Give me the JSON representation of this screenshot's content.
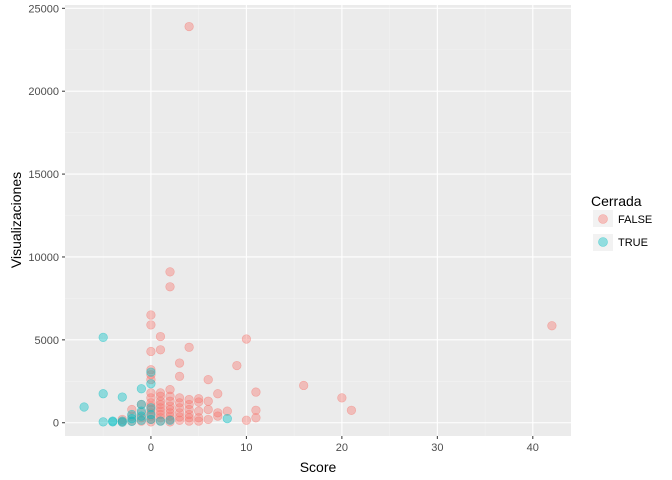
{
  "chart_data": {
    "type": "scatter",
    "xlabel": "Score",
    "ylabel": "Visualizaciones",
    "xlim": [
      -9,
      44
    ],
    "ylim": [
      -800,
      25200
    ],
    "xticks": [
      0,
      10,
      20,
      30,
      40
    ],
    "yticks": [
      0,
      5000,
      10000,
      15000,
      20000,
      25000
    ],
    "grid": true,
    "legend": {
      "title": "Cerrada",
      "position": "right",
      "entries": [
        {
          "label": "FALSE",
          "color": "#F8766D"
        },
        {
          "label": "TRUE",
          "color": "#00BFC4"
        }
      ]
    },
    "point_alpha": 0.4,
    "series": [
      {
        "name": "FALSE",
        "color": "#F8766D",
        "points": [
          [
            4,
            23900
          ],
          [
            2,
            9100
          ],
          [
            2,
            8200
          ],
          [
            0,
            6500
          ],
          [
            0,
            5900
          ],
          [
            1,
            5200
          ],
          [
            1,
            4400
          ],
          [
            0,
            4300
          ],
          [
            4,
            4550
          ],
          [
            3,
            3600
          ],
          [
            0,
            3200
          ],
          [
            0,
            2900
          ],
          [
            3,
            2800
          ],
          [
            9,
            3450
          ],
          [
            10,
            5050
          ],
          [
            42,
            5850
          ],
          [
            16,
            2250
          ],
          [
            20,
            1500
          ],
          [
            21,
            750
          ],
          [
            11,
            1850
          ],
          [
            11,
            750
          ],
          [
            11,
            300
          ],
          [
            10,
            150
          ],
          [
            8,
            700
          ],
          [
            7,
            1750
          ],
          [
            7,
            600
          ],
          [
            7,
            400
          ],
          [
            6,
            2600
          ],
          [
            6,
            1300
          ],
          [
            6,
            800
          ],
          [
            6,
            200
          ],
          [
            5,
            1450
          ],
          [
            5,
            1250
          ],
          [
            5,
            700
          ],
          [
            5,
            300
          ],
          [
            5,
            100
          ],
          [
            4,
            1400
          ],
          [
            4,
            1100
          ],
          [
            4,
            800
          ],
          [
            4,
            500
          ],
          [
            4,
            300
          ],
          [
            4,
            100
          ],
          [
            3,
            1500
          ],
          [
            3,
            1200
          ],
          [
            3,
            900
          ],
          [
            3,
            600
          ],
          [
            3,
            350
          ],
          [
            3,
            150
          ],
          [
            2,
            2000
          ],
          [
            2,
            1600
          ],
          [
            2,
            1300
          ],
          [
            2,
            1000
          ],
          [
            2,
            800
          ],
          [
            2,
            600
          ],
          [
            2,
            400
          ],
          [
            2,
            200
          ],
          [
            2,
            50
          ],
          [
            1,
            1800
          ],
          [
            1,
            1600
          ],
          [
            1,
            1300
          ],
          [
            1,
            1100
          ],
          [
            1,
            900
          ],
          [
            1,
            700
          ],
          [
            1,
            500
          ],
          [
            1,
            300
          ],
          [
            1,
            100
          ],
          [
            0,
            2600
          ],
          [
            0,
            1800
          ],
          [
            0,
            1500
          ],
          [
            0,
            1200
          ],
          [
            0,
            1000
          ],
          [
            0,
            800
          ],
          [
            0,
            600
          ],
          [
            0,
            400
          ],
          [
            0,
            200
          ],
          [
            0,
            50
          ],
          [
            -1,
            1100
          ],
          [
            -1,
            600
          ],
          [
            -1,
            300
          ],
          [
            -1,
            100
          ],
          [
            -2,
            800
          ],
          [
            -2,
            400
          ],
          [
            -2,
            100
          ],
          [
            -3,
            200
          ],
          [
            -3,
            50
          ]
        ]
      },
      {
        "name": "TRUE",
        "color": "#00BFC4",
        "points": [
          [
            -5,
            5150
          ],
          [
            -7,
            950
          ],
          [
            -5,
            1750
          ],
          [
            -5,
            50
          ],
          [
            -3,
            1550
          ],
          [
            -1,
            2050
          ],
          [
            -1,
            1100
          ],
          [
            -1,
            700
          ],
          [
            -1,
            400
          ],
          [
            -1,
            150
          ],
          [
            0,
            2350
          ],
          [
            0,
            3050
          ],
          [
            0,
            900
          ],
          [
            0,
            500
          ],
          [
            0,
            200
          ],
          [
            -4,
            100
          ],
          [
            -4,
            50
          ],
          [
            -3,
            100
          ],
          [
            -3,
            30
          ],
          [
            -2,
            500
          ],
          [
            -2,
            250
          ],
          [
            -2,
            80
          ],
          [
            1,
            100
          ],
          [
            2,
            150
          ],
          [
            8,
            250
          ]
        ]
      }
    ]
  }
}
